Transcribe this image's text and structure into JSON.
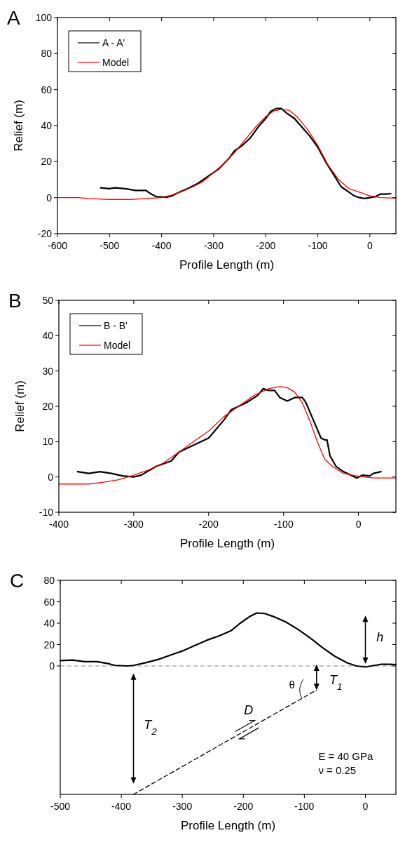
{
  "chart_data": [
    {
      "type": "line",
      "title": "A",
      "xlabel": "Profile Length (m)",
      "ylabel": "Relief (m)",
      "xlim": [
        -600,
        50
      ],
      "xticks": [
        -600,
        -500,
        -400,
        -300,
        -200,
        -100,
        0
      ],
      "ylim": [
        -20,
        100
      ],
      "yticks": [
        -20,
        0,
        20,
        40,
        60,
        80,
        100
      ],
      "legend": "top left",
      "grid": false,
      "series": [
        {
          "name": "A - A'",
          "color": "#000000",
          "x": [
            -517,
            -500,
            -490,
            -470,
            -450,
            -430,
            -420,
            -410,
            -390,
            -380,
            -370,
            -350,
            -330,
            -310,
            -290,
            -270,
            -260,
            -245,
            -230,
            -215,
            -200,
            -190,
            -180,
            -170,
            -160,
            -145,
            -130,
            -115,
            -100,
            -85,
            -70,
            -55,
            -40,
            -30,
            -20,
            -10,
            0,
            10,
            20,
            30,
            40
          ],
          "values": [
            5.5,
            5,
            5.5,
            5,
            4,
            4,
            2,
            0.5,
            0.3,
            1,
            2.5,
            5,
            8,
            12,
            16,
            22,
            26,
            29,
            33,
            39,
            44,
            48,
            49.5,
            49.5,
            47,
            44,
            39,
            34,
            28,
            20,
            13,
            6,
            3,
            1,
            0,
            -0.5,
            0,
            0.5,
            2,
            2,
            2.2
          ]
        },
        {
          "name": "Model",
          "color": "#ff0000",
          "x": [
            -600,
            -560,
            -540,
            -500,
            -460,
            -430,
            -400,
            -380,
            -360,
            -340,
            -320,
            -300,
            -280,
            -260,
            -240,
            -220,
            -200,
            -185,
            -170,
            -155,
            -140,
            -120,
            -100,
            -80,
            -60,
            -40,
            -20,
            0,
            20,
            50
          ],
          "values": [
            0,
            0,
            -0.5,
            -1,
            -1,
            -0.5,
            0,
            1.5,
            3.5,
            6,
            9,
            14,
            19,
            25,
            32,
            39,
            45,
            48,
            49,
            48.5,
            45,
            38,
            29,
            18,
            10,
            5,
            3,
            1,
            0,
            -0.3
          ]
        }
      ]
    },
    {
      "type": "line",
      "title": "B",
      "xlabel": "Profile Length (m)",
      "ylabel": "Relief (m)",
      "xlim": [
        -400,
        50
      ],
      "xticks": [
        -400,
        -300,
        -200,
        -100,
        0
      ],
      "ylim": [
        -10,
        50
      ],
      "yticks": [
        -10,
        0,
        10,
        20,
        30,
        40,
        50
      ],
      "legend": "top left",
      "grid": false,
      "series": [
        {
          "name": "B - B'",
          "color": "#000000",
          "x": [
            -375,
            -360,
            -345,
            -330,
            -315,
            -300,
            -290,
            -270,
            -250,
            -240,
            -220,
            -200,
            -180,
            -170,
            -150,
            -135,
            -127,
            -120,
            -112,
            -105,
            -95,
            -85,
            -75,
            -70,
            -60,
            -50,
            -45,
            -42,
            -38,
            -30,
            -20,
            -10,
            -2,
            5,
            15,
            20,
            30
          ],
          "values": [
            1.5,
            1,
            1.5,
            1,
            0.3,
            0,
            0.5,
            3,
            4.5,
            7,
            9,
            11,
            16,
            19,
            21,
            23,
            25,
            24.5,
            24.5,
            22.5,
            21.5,
            22.5,
            22.5,
            21,
            16,
            11,
            10.5,
            10.5,
            6,
            3,
            1.5,
            0.5,
            -0.3,
            0.5,
            0.3,
            1,
            1.5
          ]
        },
        {
          "name": "Model",
          "color": "#ff0000",
          "x": [
            -400,
            -360,
            -340,
            -320,
            -300,
            -280,
            -260,
            -240,
            -220,
            -200,
            -180,
            -160,
            -140,
            -120,
            -105,
            -95,
            -85,
            -75,
            -65,
            -55,
            -45,
            -35,
            -20,
            0,
            20,
            50
          ],
          "values": [
            -2,
            -2,
            -1.5,
            -0.8,
            0.5,
            2,
            4,
            7,
            10,
            13,
            17,
            20,
            23,
            25,
            25.6,
            25.3,
            24,
            21,
            16,
            10,
            5,
            3,
            1,
            0.2,
            -0.3,
            -0.3
          ]
        }
      ]
    },
    {
      "type": "line",
      "title": "C",
      "xlabel": "Profile Length (m)",
      "xlim": [
        -500,
        50
      ],
      "xticks": [
        -500,
        -400,
        -300,
        -200,
        -100,
        0
      ],
      "ylim": [
        -120,
        80
      ],
      "yticks": [
        0,
        20,
        40,
        60,
        80
      ],
      "grid": false,
      "ref_lines": [
        {
          "axis": "y",
          "value": 0,
          "color": "#888888",
          "line_style": "dashed"
        }
      ],
      "series": [
        {
          "color": "#000000",
          "line_style": "solid",
          "x": [
            -500,
            -480,
            -460,
            -440,
            -420,
            -410,
            -390,
            -380,
            -360,
            -340,
            -320,
            -300,
            -280,
            -260,
            -240,
            -220,
            -205,
            -190,
            -178,
            -165,
            -150,
            -130,
            -110,
            -90,
            -70,
            -50,
            -30,
            -15,
            0,
            10,
            25,
            40,
            50
          ],
          "values": [
            5,
            5.5,
            4,
            4,
            2,
            0.5,
            0,
            0.5,
            3,
            6,
            10,
            14,
            19,
            24,
            28,
            33,
            40,
            46,
            49.5,
            49,
            46,
            41,
            34,
            26,
            17,
            9,
            3,
            0,
            -1,
            0,
            1.5,
            1.5,
            1.2
          ]
        },
        {
          "color": "#000000",
          "line_style": "dashed",
          "x": [
            -380,
            -80
          ],
          "values": [
            -120,
            -22.5
          ]
        }
      ],
      "annotations": [
        "h",
        "T$_{1}$",
        "T$_{2}$",
        "θ",
        "D",
        "E = 40 GPa",
        "ν = 0.25"
      ]
    }
  ]
}
